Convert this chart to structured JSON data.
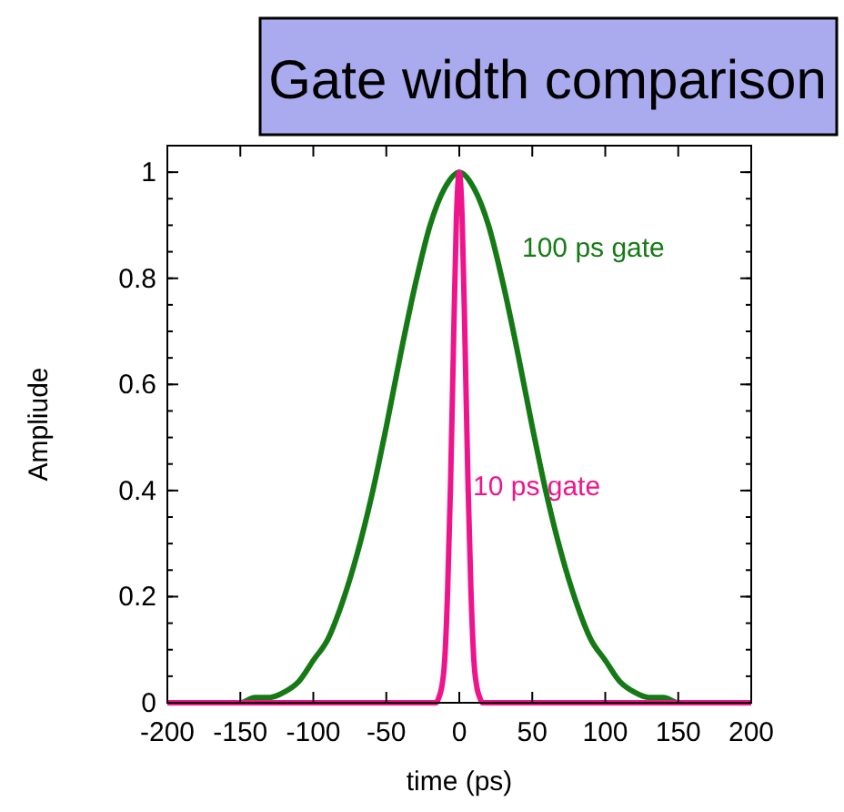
{
  "chart_data": {
    "type": "line",
    "title": "Gate width comparison",
    "xlabel": "time (ps)",
    "ylabel": "Ampliude",
    "xlim": [
      -200,
      200
    ],
    "xticks": [
      -200,
      -150,
      -100,
      -50,
      0,
      50,
      100,
      150,
      200
    ],
    "ylim": [
      0,
      1.05
    ],
    "yticks": [
      0,
      0.2,
      0.4,
      0.6,
      0.8,
      1
    ],
    "series": [
      {
        "color": "#157a15",
        "x": [
          -160,
          -150,
          -140,
          -130,
          -120,
          -110,
          -100,
          -90,
          -80,
          -70,
          -60,
          -50,
          -40,
          -30,
          -20,
          -10,
          0,
          10,
          20,
          30,
          40,
          50,
          60,
          70,
          80,
          90,
          100,
          110,
          120,
          130,
          140,
          150,
          160
        ],
        "values": [
          0,
          0,
          0.01,
          0.01,
          0.02,
          0.04,
          0.08,
          0.12,
          0.19,
          0.28,
          0.39,
          0.52,
          0.66,
          0.79,
          0.9,
          0.97,
          1,
          0.97,
          0.9,
          0.79,
          0.66,
          0.52,
          0.39,
          0.28,
          0.19,
          0.12,
          0.08,
          0.04,
          0.02,
          0.01,
          0.01,
          0,
          0
        ]
      },
      {
        "color": "#f0148c",
        "x": [
          -200,
          -16,
          -14,
          -12,
          -10,
          -8,
          -6,
          -4,
          -2,
          0,
          2,
          4,
          6,
          8,
          10,
          12,
          14,
          16,
          200
        ],
        "values": [
          0,
          0,
          0.01,
          0.03,
          0.08,
          0.21,
          0.41,
          0.67,
          0.91,
          1,
          0.91,
          0.67,
          0.41,
          0.21,
          0.08,
          0.03,
          0.01,
          0,
          0
        ]
      }
    ],
    "annotations": [
      "100 ps gate",
      "10 ps gate"
    ],
    "grid": false,
    "marker": "none",
    "line_style": "solid"
  }
}
